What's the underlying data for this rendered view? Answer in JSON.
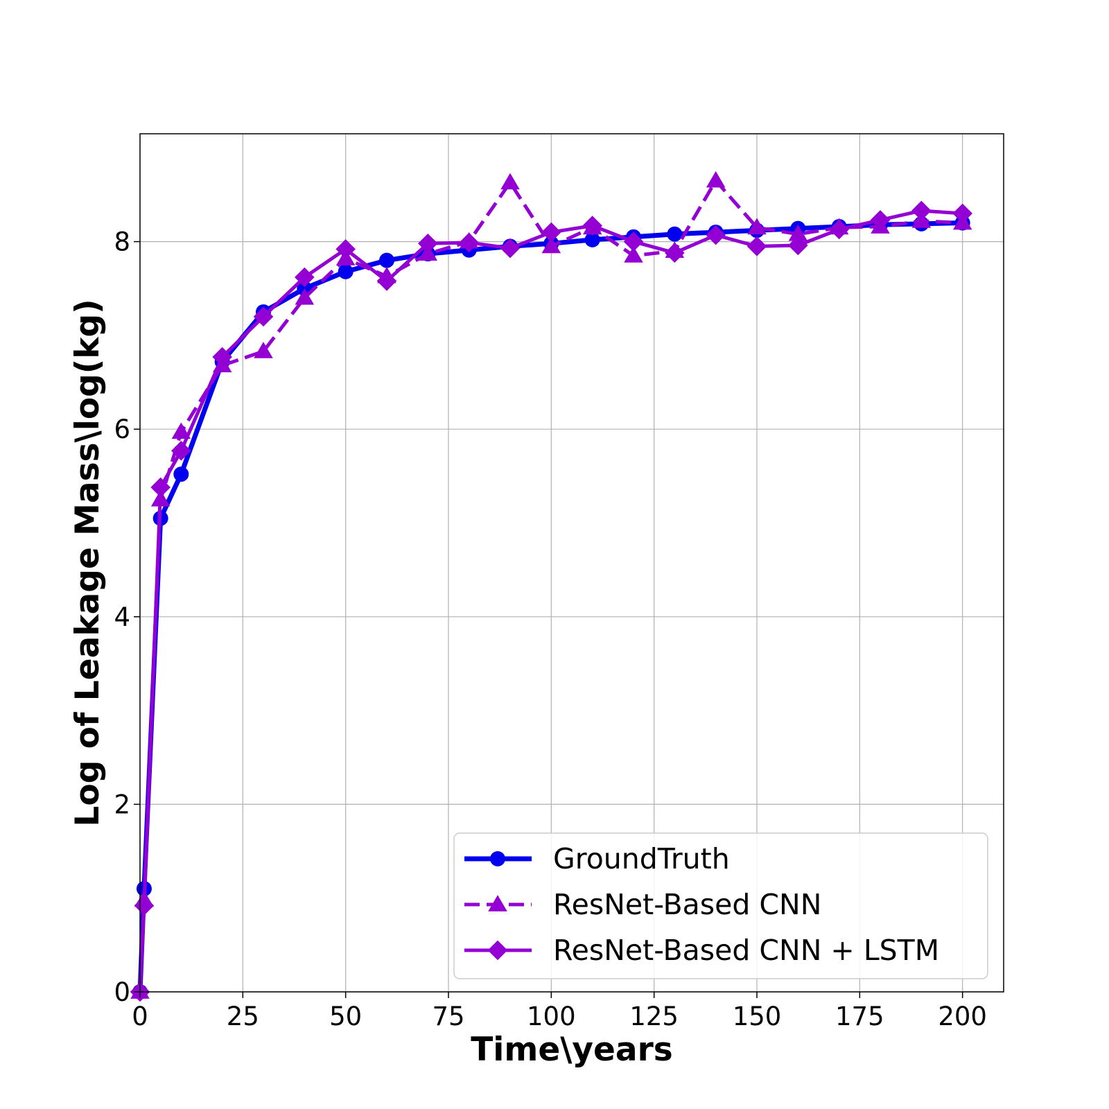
{
  "chart_data": {
    "type": "line",
    "title": "",
    "xlabel": "Time\\years",
    "ylabel": "Log of Leakage Mass\\log(kg)",
    "xlim": [
      0,
      210
    ],
    "ylim": [
      0,
      9.15
    ],
    "xticks": [
      0,
      25,
      50,
      75,
      100,
      125,
      150,
      175,
      200
    ],
    "yticks": [
      0,
      2,
      4,
      6,
      8
    ],
    "grid": true,
    "legend_position": "bottom-right",
    "series": [
      {
        "name": "GroundTruth",
        "color": "#0000ee",
        "marker": "circle",
        "dash": "solid",
        "x": [
          0,
          1,
          5,
          10,
          20,
          30,
          40,
          50,
          60,
          70,
          80,
          90,
          100,
          110,
          120,
          130,
          140,
          150,
          160,
          170,
          180,
          190,
          200
        ],
        "y": [
          0.0,
          1.1,
          5.05,
          5.52,
          6.72,
          7.25,
          7.5,
          7.68,
          7.8,
          7.87,
          7.91,
          7.95,
          7.98,
          8.02,
          8.05,
          8.08,
          8.1,
          8.12,
          8.14,
          8.16,
          8.18,
          8.19,
          8.2
        ]
      },
      {
        "name": "ResNet-Based CNN",
        "color": "#9400d3",
        "marker": "triangle",
        "dash": "dashed",
        "x": [
          0,
          1,
          5,
          10,
          20,
          30,
          40,
          50,
          60,
          70,
          80,
          90,
          100,
          110,
          120,
          130,
          140,
          150,
          160,
          170,
          180,
          190,
          200
        ],
        "y": [
          0.0,
          0.98,
          5.25,
          5.97,
          6.68,
          6.83,
          7.4,
          7.82,
          7.63,
          7.87,
          8.0,
          8.63,
          7.95,
          8.15,
          7.85,
          7.9,
          8.65,
          8.15,
          8.08,
          8.15,
          8.16,
          8.22,
          8.2
        ]
      },
      {
        "name": "ResNet-Based CNN + LSTM",
        "color": "#9400d3",
        "marker": "diamond",
        "dash": "solid",
        "x": [
          0,
          1,
          5,
          10,
          20,
          30,
          40,
          50,
          60,
          70,
          80,
          90,
          100,
          110,
          120,
          130,
          140,
          150,
          160,
          170,
          180,
          190,
          200
        ],
        "y": [
          0.0,
          0.92,
          5.38,
          5.77,
          6.77,
          7.2,
          7.62,
          7.92,
          7.58,
          7.98,
          7.99,
          7.93,
          8.1,
          8.17,
          8.0,
          7.88,
          8.07,
          7.95,
          7.96,
          8.13,
          8.23,
          8.33,
          8.3
        ]
      }
    ]
  }
}
